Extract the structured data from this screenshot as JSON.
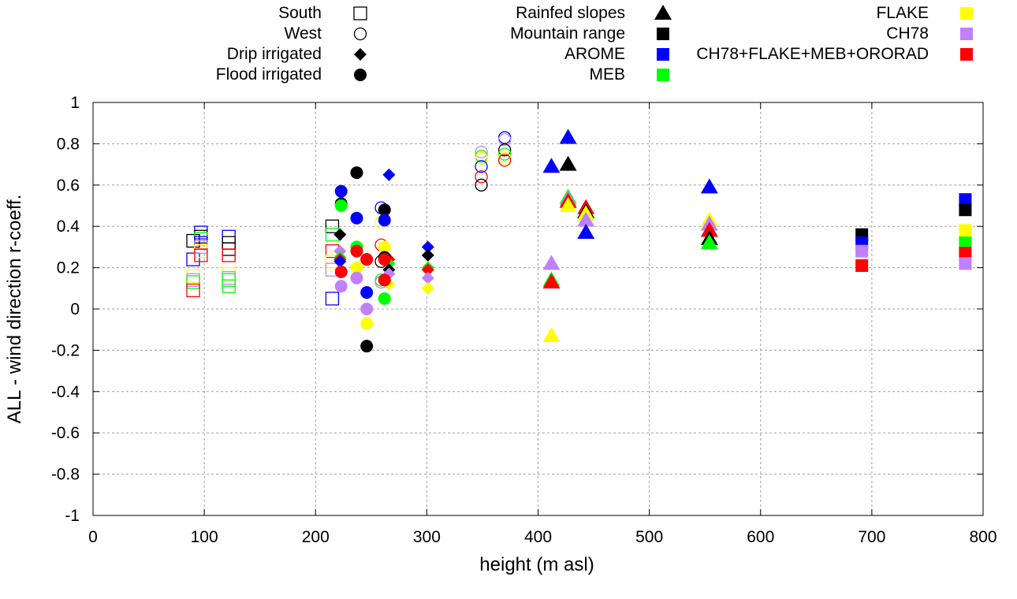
{
  "chart_data": {
    "type": "scatter",
    "title": "",
    "xlabel": "height (m asl)",
    "ylabel": "ALL - wind direction r-coeff.",
    "xlim": [
      0,
      800
    ],
    "ylim": [
      -1,
      1
    ],
    "xticks": [
      "0",
      "100",
      "200",
      "300",
      "400",
      "500",
      "600",
      "700",
      "800"
    ],
    "yticks": [
      "1",
      "0.8",
      "0.6",
      "0.4",
      "0.2",
      "0",
      "-0.2",
      "-0.4",
      "-0.6",
      "-0.8",
      "-1"
    ],
    "grid": true,
    "legend_position": "top (outside plot)",
    "legend_shapes": [
      {
        "label": "South",
        "marker": "open-square"
      },
      {
        "label": "West",
        "marker": "open-circle"
      },
      {
        "label": "Drip irrigated",
        "marker": "filled-diamond"
      },
      {
        "label": "Flood irrigated",
        "marker": "filled-circle"
      },
      {
        "label": "Rainfed slopes",
        "marker": "filled-triangle"
      },
      {
        "label": "Mountain range",
        "marker": "filled-square"
      }
    ],
    "legend_models": [
      {
        "label": "AROME",
        "color": "#0000ff"
      },
      {
        "label": "MEB",
        "color": "#00ff00"
      },
      {
        "label": "FLAKE",
        "color": "#ffff00"
      },
      {
        "label": "CH78",
        "color": "#c080ff"
      },
      {
        "label": "CH78+FLAKE+MEB+ORORAD",
        "color": "#ff0000"
      }
    ],
    "legend_mountain_color": "#000000",
    "series": [
      {
        "name": "South",
        "marker": "open-square",
        "points": [
          {
            "x": 90,
            "y": 0.33,
            "model": "REF"
          },
          {
            "x": 90,
            "y": 0.24,
            "model": "AROME"
          },
          {
            "x": 90,
            "y": 0.16,
            "model": "FLAKE"
          },
          {
            "x": 90,
            "y": 0.14,
            "model": "CH78"
          },
          {
            "x": 90,
            "y": 0.13,
            "model": "MEB"
          },
          {
            "x": 90,
            "y": 0.09,
            "model": "CH78+FLAKE+MEB+ORORAD"
          },
          {
            "x": 97,
            "y": 0.37,
            "model": "AROME"
          },
          {
            "x": 97,
            "y": 0.35,
            "model": "REF"
          },
          {
            "x": 97,
            "y": 0.34,
            "model": "MEB"
          },
          {
            "x": 97,
            "y": 0.32,
            "model": "AROME"
          },
          {
            "x": 97,
            "y": 0.3,
            "model": "CH78"
          },
          {
            "x": 97,
            "y": 0.28,
            "model": "FLAKE"
          },
          {
            "x": 97,
            "y": 0.26,
            "model": "CH78+FLAKE+MEB+ORORAD"
          },
          {
            "x": 122,
            "y": 0.35,
            "model": "AROME"
          },
          {
            "x": 122,
            "y": 0.32,
            "model": "REF"
          },
          {
            "x": 122,
            "y": 0.29,
            "model": "REF"
          },
          {
            "x": 122,
            "y": 0.26,
            "model": "CH78+FLAKE+MEB+ORORAD"
          },
          {
            "x": 122,
            "y": 0.17,
            "model": "FLAKE"
          },
          {
            "x": 122,
            "y": 0.15,
            "model": "CH78"
          },
          {
            "x": 122,
            "y": 0.14,
            "model": "MEB"
          },
          {
            "x": 122,
            "y": 0.11,
            "model": "MEB"
          },
          {
            "x": 215,
            "y": 0.4,
            "model": "REF"
          },
          {
            "x": 215,
            "y": 0.36,
            "model": "MEB"
          },
          {
            "x": 215,
            "y": 0.28,
            "model": "CH78+FLAKE+MEB+ORORAD"
          },
          {
            "x": 215,
            "y": 0.23,
            "model": "FLAKE"
          },
          {
            "x": 215,
            "y": 0.19,
            "model": "CH78"
          },
          {
            "x": 215,
            "y": 0.05,
            "model": "AROME"
          }
        ]
      },
      {
        "name": "West",
        "marker": "open-circle",
        "points": [
          {
            "x": 259,
            "y": 0.49,
            "model": "AROME"
          },
          {
            "x": 259,
            "y": 0.42,
            "model": "FLAKE"
          },
          {
            "x": 259,
            "y": 0.31,
            "model": "CH78+FLAKE+MEB+ORORAD"
          },
          {
            "x": 259,
            "y": 0.23,
            "model": "REF"
          },
          {
            "x": 259,
            "y": 0.14,
            "model": "MEB"
          },
          {
            "x": 259,
            "y": 0.13,
            "model": "CH78"
          },
          {
            "x": 349,
            "y": 0.76,
            "model": "CH78"
          },
          {
            "x": 349,
            "y": 0.74,
            "model": "MEB"
          },
          {
            "x": 349,
            "y": 0.73,
            "model": "FLAKE"
          },
          {
            "x": 349,
            "y": 0.69,
            "model": "AROME"
          },
          {
            "x": 349,
            "y": 0.64,
            "model": "CH78+FLAKE+MEB+ORORAD"
          },
          {
            "x": 349,
            "y": 0.6,
            "model": "REF"
          },
          {
            "x": 370,
            "y": 0.83,
            "model": "AROME"
          },
          {
            "x": 370,
            "y": 0.82,
            "model": "CH78"
          },
          {
            "x": 370,
            "y": 0.77,
            "model": "REF"
          },
          {
            "x": 370,
            "y": 0.75,
            "model": "MEB"
          },
          {
            "x": 370,
            "y": 0.73,
            "model": "FLAKE"
          },
          {
            "x": 370,
            "y": 0.72,
            "model": "CH78+FLAKE+MEB+ORORAD"
          }
        ]
      },
      {
        "name": "Drip irrigated",
        "marker": "filled-diamond",
        "points": [
          {
            "x": 222,
            "y": 0.36,
            "model": "REF"
          },
          {
            "x": 222,
            "y": 0.28,
            "model": "CH78"
          },
          {
            "x": 222,
            "y": 0.25,
            "model": "MEB"
          },
          {
            "x": 222,
            "y": 0.24,
            "model": "CH78+FLAKE+MEB+ORORAD"
          },
          {
            "x": 222,
            "y": 0.23,
            "model": "AROME"
          },
          {
            "x": 266,
            "y": 0.65,
            "model": "AROME"
          },
          {
            "x": 266,
            "y": 0.24,
            "model": "CH78+FLAKE+MEB+ORORAD"
          },
          {
            "x": 266,
            "y": 0.22,
            "model": "MEB"
          },
          {
            "x": 266,
            "y": 0.19,
            "model": "REF"
          },
          {
            "x": 266,
            "y": 0.17,
            "model": "CH78"
          },
          {
            "x": 266,
            "y": 0.12,
            "model": "FLAKE"
          },
          {
            "x": 301,
            "y": 0.3,
            "model": "AROME"
          },
          {
            "x": 301,
            "y": 0.26,
            "model": "REF"
          },
          {
            "x": 301,
            "y": 0.2,
            "model": "MEB"
          },
          {
            "x": 301,
            "y": 0.19,
            "model": "CH78+FLAKE+MEB+ORORAD"
          },
          {
            "x": 301,
            "y": 0.15,
            "model": "CH78"
          },
          {
            "x": 301,
            "y": 0.1,
            "model": "FLAKE"
          }
        ]
      },
      {
        "name": "Flood irrigated",
        "marker": "filled-circle",
        "points": [
          {
            "x": 223,
            "y": 0.57,
            "model": "AROME"
          },
          {
            "x": 223,
            "y": 0.51,
            "model": "REF"
          },
          {
            "x": 223,
            "y": 0.5,
            "model": "MEB"
          },
          {
            "x": 223,
            "y": 0.18,
            "model": "CH78+FLAKE+MEB+ORORAD"
          },
          {
            "x": 223,
            "y": 0.11,
            "model": "CH78"
          },
          {
            "x": 237,
            "y": 0.66,
            "model": "REF"
          },
          {
            "x": 237,
            "y": 0.44,
            "model": "AROME"
          },
          {
            "x": 237,
            "y": 0.3,
            "model": "MEB"
          },
          {
            "x": 237,
            "y": 0.28,
            "model": "CH78+FLAKE+MEB+ORORAD"
          },
          {
            "x": 237,
            "y": 0.2,
            "model": "FLAKE"
          },
          {
            "x": 237,
            "y": 0.15,
            "model": "CH78"
          },
          {
            "x": 246,
            "y": 0.24,
            "model": "MEB"
          },
          {
            "x": 246,
            "y": 0.24,
            "model": "CH78+FLAKE+MEB+ORORAD"
          },
          {
            "x": 246,
            "y": 0.08,
            "model": "AROME"
          },
          {
            "x": 246,
            "y": 0.0,
            "model": "CH78"
          },
          {
            "x": 246,
            "y": -0.07,
            "model": "FLAKE"
          },
          {
            "x": 246,
            "y": -0.18,
            "model": "REF"
          },
          {
            "x": 262,
            "y": 0.48,
            "model": "REF"
          },
          {
            "x": 262,
            "y": 0.43,
            "model": "AROME"
          },
          {
            "x": 262,
            "y": 0.3,
            "model": "FLAKE"
          },
          {
            "x": 262,
            "y": 0.25,
            "model": "REF"
          },
          {
            "x": 262,
            "y": 0.24,
            "model": "CH78+FLAKE+MEB+ORORAD"
          },
          {
            "x": 262,
            "y": 0.14,
            "model": "CH78+FLAKE+MEB+ORORAD"
          },
          {
            "x": 262,
            "y": 0.05,
            "model": "MEB"
          }
        ]
      },
      {
        "name": "Rainfed slopes",
        "marker": "filled-triangle",
        "points": [
          {
            "x": 412,
            "y": 0.69,
            "model": "AROME"
          },
          {
            "x": 412,
            "y": 0.22,
            "model": "CH78"
          },
          {
            "x": 412,
            "y": 0.14,
            "model": "MEB"
          },
          {
            "x": 412,
            "y": 0.13,
            "model": "CH78+FLAKE+MEB+ORORAD"
          },
          {
            "x": 412,
            "y": -0.13,
            "model": "FLAKE"
          },
          {
            "x": 427,
            "y": 0.83,
            "model": "AROME"
          },
          {
            "x": 427,
            "y": 0.7,
            "model": "REF"
          },
          {
            "x": 427,
            "y": 0.54,
            "model": "MEB"
          },
          {
            "x": 427,
            "y": 0.53,
            "model": "CH78"
          },
          {
            "x": 427,
            "y": 0.52,
            "model": "CH78+FLAKE+MEB+ORORAD"
          },
          {
            "x": 427,
            "y": 0.5,
            "model": "FLAKE"
          },
          {
            "x": 443,
            "y": 0.49,
            "model": "CH78+FLAKE+MEB+ORORAD"
          },
          {
            "x": 443,
            "y": 0.47,
            "model": "REF"
          },
          {
            "x": 443,
            "y": 0.46,
            "model": "MEB"
          },
          {
            "x": 443,
            "y": 0.46,
            "model": "FLAKE"
          },
          {
            "x": 443,
            "y": 0.43,
            "model": "CH78"
          },
          {
            "x": 443,
            "y": 0.37,
            "model": "AROME"
          },
          {
            "x": 554,
            "y": 0.59,
            "model": "AROME"
          },
          {
            "x": 554,
            "y": 0.43,
            "model": "FLAKE"
          },
          {
            "x": 554,
            "y": 0.41,
            "model": "CH78"
          },
          {
            "x": 554,
            "y": 0.38,
            "model": "CH78+FLAKE+MEB+ORORAD"
          },
          {
            "x": 554,
            "y": 0.34,
            "model": "REF"
          },
          {
            "x": 554,
            "y": 0.32,
            "model": "MEB"
          }
        ]
      },
      {
        "name": "Mountain range",
        "marker": "filled-square",
        "points": [
          {
            "x": 691,
            "y": 0.36,
            "model": "REF"
          },
          {
            "x": 691,
            "y": 0.32,
            "model": "AROME"
          },
          {
            "x": 691,
            "y": 0.28,
            "model": "CH78"
          },
          {
            "x": 691,
            "y": 0.21,
            "model": "CH78+FLAKE+MEB+ORORAD"
          },
          {
            "x": 784,
            "y": 0.53,
            "model": "AROME"
          },
          {
            "x": 784,
            "y": 0.48,
            "model": "REF"
          },
          {
            "x": 784,
            "y": 0.38,
            "model": "FLAKE"
          },
          {
            "x": 784,
            "y": 0.32,
            "model": "MEB"
          },
          {
            "x": 784,
            "y": 0.27,
            "model": "CH78+FLAKE+MEB+ORORAD"
          },
          {
            "x": 784,
            "y": 0.22,
            "model": "CH78"
          }
        ]
      }
    ]
  }
}
